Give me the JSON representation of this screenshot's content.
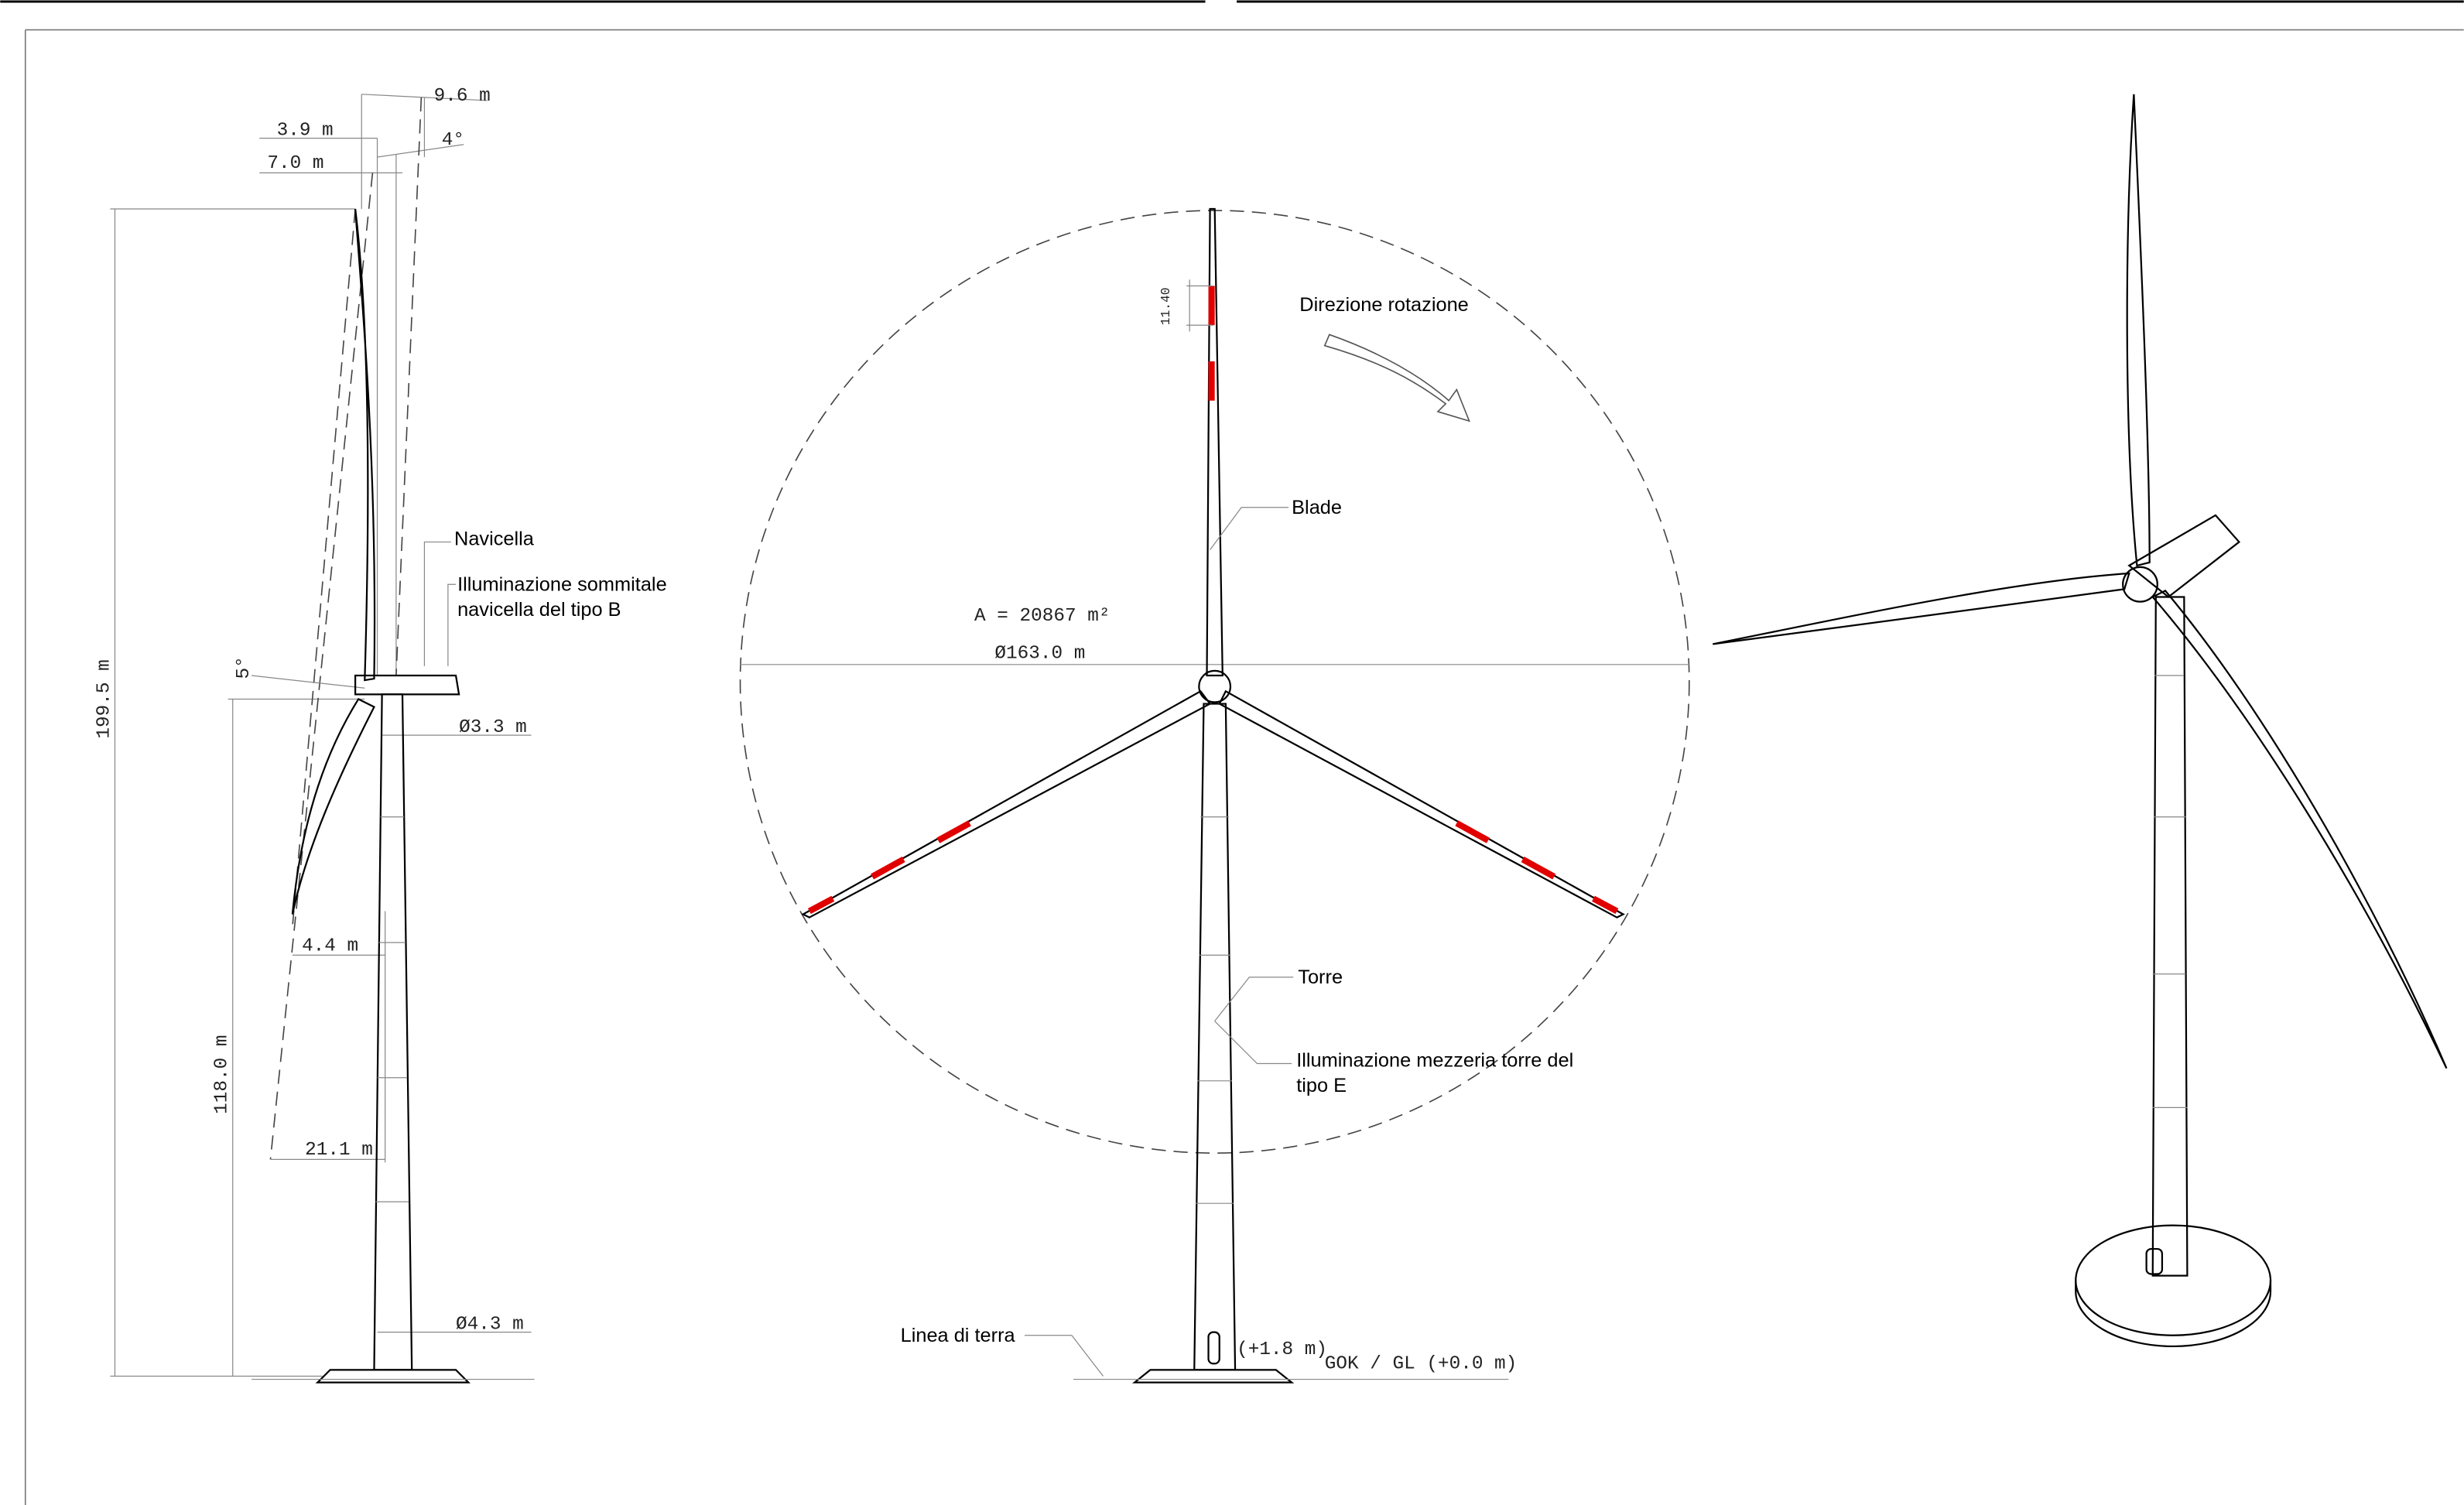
{
  "side_view": {
    "dimensions": {
      "blade_sweep": "9.6 m",
      "hub_offset": "3.9 m",
      "tilt_angle": "4°",
      "overhang": "7.0 m",
      "total_height": "199.5 m",
      "cone_angle": "5°",
      "tower_top_diameter": "Ø3.3 m",
      "blade_deflection": "4.4 m",
      "hub_height": "118.0 m",
      "tip_offset": "21.1 m",
      "tower_base_diameter": "Ø4.3 m"
    },
    "labels": {
      "nacelle": "Navicella",
      "top_light": [
        "Illuminazione sommitale",
        "navicella del tipo B"
      ]
    }
  },
  "front_view": {
    "dimensions": {
      "marking_band": "11.40",
      "swept_area": "A = 20867 m²",
      "rotor_diameter": "Ø163.0 m",
      "door_level": "(+1.8 m)",
      "ground_level": "GOK / GL (+0.0 m)"
    },
    "labels": {
      "rotation": "Direzione rotazione",
      "blade": "Blade",
      "tower": "Torre",
      "tower_light": [
        "Illuminazione mezzeria torre del",
        "tipo E"
      ],
      "ground_line": "Linea di terra"
    }
  }
}
